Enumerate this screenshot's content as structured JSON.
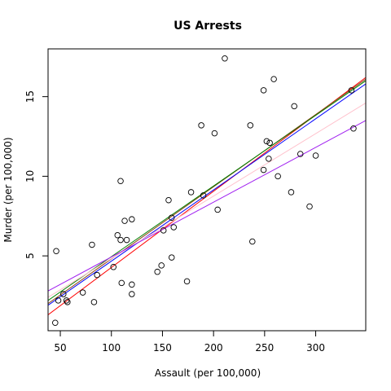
{
  "chart_data": {
    "type": "scatter",
    "title": "US Arrests",
    "xlabel": "Assault (per 100,000)",
    "ylabel": "Murder (per 100,000)",
    "xlim": [
      38,
      349
    ],
    "ylim": [
      0.3,
      18.0
    ],
    "xticks": [
      "50",
      "100",
      "150",
      "200",
      "250",
      "300"
    ],
    "yticks": [
      "5",
      "10",
      "15"
    ],
    "points": [
      {
        "x": 236,
        "y": 13.2
      },
      {
        "x": 263,
        "y": 10.0
      },
      {
        "x": 294,
        "y": 8.1
      },
      {
        "x": 190,
        "y": 8.8
      },
      {
        "x": 276,
        "y": 9.0
      },
      {
        "x": 204,
        "y": 7.9
      },
      {
        "x": 110,
        "y": 3.3
      },
      {
        "x": 238,
        "y": 5.9
      },
      {
        "x": 335,
        "y": 15.4
      },
      {
        "x": 211,
        "y": 17.4
      },
      {
        "x": 46,
        "y": 5.3
      },
      {
        "x": 120,
        "y": 2.6
      },
      {
        "x": 249,
        "y": 10.4
      },
      {
        "x": 113,
        "y": 7.2
      },
      {
        "x": 56,
        "y": 2.2
      },
      {
        "x": 115,
        "y": 6.0
      },
      {
        "x": 109,
        "y": 9.7
      },
      {
        "x": 249,
        "y": 15.4
      },
      {
        "x": 83,
        "y": 2.1
      },
      {
        "x": 300,
        "y": 11.3
      },
      {
        "x": 149,
        "y": 4.4
      },
      {
        "x": 255,
        "y": 12.1
      },
      {
        "x": 72,
        "y": 2.7
      },
      {
        "x": 259,
        "y": 16.1
      },
      {
        "x": 178,
        "y": 9.0
      },
      {
        "x": 109,
        "y": 6.0
      },
      {
        "x": 102,
        "y": 4.3
      },
      {
        "x": 252,
        "y": 12.2
      },
      {
        "x": 57,
        "y": 2.1
      },
      {
        "x": 159,
        "y": 7.4
      },
      {
        "x": 285,
        "y": 11.4
      },
      {
        "x": 254,
        "y": 11.1
      },
      {
        "x": 337,
        "y": 13.0
      },
      {
        "x": 45,
        "y": 0.8
      },
      {
        "x": 120,
        "y": 7.3
      },
      {
        "x": 151,
        "y": 6.6
      },
      {
        "x": 159,
        "y": 4.9
      },
      {
        "x": 106,
        "y": 6.3
      },
      {
        "x": 174,
        "y": 3.4
      },
      {
        "x": 279,
        "y": 14.4
      },
      {
        "x": 86,
        "y": 3.8
      },
      {
        "x": 188,
        "y": 13.2
      },
      {
        "x": 201,
        "y": 12.7
      },
      {
        "x": 120,
        "y": 3.2
      },
      {
        "x": 48,
        "y": 2.2
      },
      {
        "x": 156,
        "y": 8.5
      },
      {
        "x": 145,
        "y": 4.0
      },
      {
        "x": 81,
        "y": 5.7
      },
      {
        "x": 53,
        "y": 2.6
      },
      {
        "x": 161,
        "y": 6.8
      }
    ],
    "lines": [
      {
        "color": "#FF0000",
        "x": [
          38,
          349
        ],
        "y": [
          1.3,
          16.2
        ]
      },
      {
        "color": "#8B4513",
        "x": [
          38,
          349
        ],
        "y": [
          2.0,
          16.1
        ]
      },
      {
        "color": "#008000",
        "x": [
          38,
          349
        ],
        "y": [
          2.2,
          16.0
        ]
      },
      {
        "color": "#0000FF",
        "x": [
          38,
          349
        ],
        "y": [
          1.9,
          15.8
        ]
      },
      {
        "color": "#FFC0CB",
        "x": [
          38,
          349
        ],
        "y": [
          2.4,
          14.6
        ]
      },
      {
        "color": "#A020F0",
        "x": [
          38,
          349
        ],
        "y": [
          2.8,
          13.5
        ]
      }
    ],
    "grid": false,
    "legend": "none"
  }
}
